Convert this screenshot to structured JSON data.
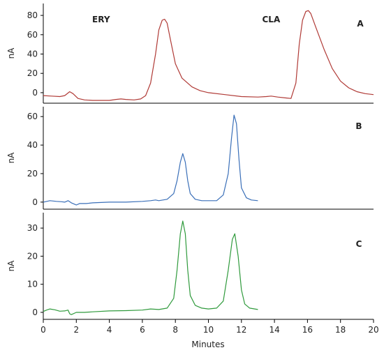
{
  "chart_data": [
    {
      "type": "line",
      "panel_label": "A",
      "ylabel": "nA",
      "ylim": [
        -8,
        88
      ],
      "yticks": [
        0,
        20,
        40,
        60,
        80
      ],
      "annotations": [
        {
          "text": "ERY",
          "x": 3.5,
          "y": 73
        },
        {
          "text": "CLA",
          "x": 13.8,
          "y": 73
        }
      ],
      "series": [
        {
          "color": "#b03a36",
          "x": [
            0.0,
            0.5,
            1.0,
            1.3,
            1.6,
            1.8,
            2.1,
            2.5,
            3.0,
            4.0,
            4.4,
            4.7,
            5.0,
            5.5,
            5.9,
            6.2,
            6.5,
            6.8,
            7.0,
            7.2,
            7.35,
            7.5,
            7.7,
            8.0,
            8.4,
            9.0,
            9.5,
            10.0,
            11.0,
            12.0,
            13.0,
            13.5,
            13.8,
            14.2,
            14.7,
            15.0,
            15.3,
            15.5,
            15.7,
            15.9,
            16.05,
            16.2,
            16.5,
            17.0,
            17.5,
            18.0,
            18.5,
            19.0,
            19.5,
            20.0
          ],
          "y": [
            -3,
            -3.5,
            -4,
            -3,
            1,
            -1,
            -6,
            -7.5,
            -8,
            -8,
            -7,
            -6.5,
            -7,
            -7.5,
            -6.5,
            -3,
            10,
            40,
            65,
            75,
            76,
            72,
            55,
            30,
            15,
            6,
            2,
            0,
            -2,
            -4,
            -4.5,
            -4,
            -3.5,
            -4.5,
            -5.5,
            -6,
            10,
            50,
            75,
            84,
            85,
            82,
            68,
            45,
            25,
            12,
            5,
            1,
            -1,
            -2
          ]
        }
      ]
    },
    {
      "type": "line",
      "panel_label": "B",
      "ylabel": "nA",
      "ylim": [
        -3,
        64
      ],
      "yticks": [
        0,
        20,
        40,
        60
      ],
      "series": [
        {
          "color": "#3a6fb8",
          "x": [
            0.0,
            0.4,
            0.8,
            1.1,
            1.3,
            1.5,
            1.7,
            1.9,
            2.0,
            2.2,
            2.6,
            3.0,
            4.0,
            5.0,
            6.0,
            6.5,
            6.8,
            7.0,
            7.5,
            7.9,
            8.1,
            8.3,
            8.45,
            8.6,
            8.75,
            8.9,
            9.2,
            9.6,
            10.0,
            10.5,
            10.9,
            11.2,
            11.4,
            11.55,
            11.7,
            11.85,
            12.0,
            12.3,
            12.6,
            13.0
          ],
          "y": [
            0,
            1,
            0.5,
            0.3,
            0,
            1,
            -0.5,
            -1.5,
            -2,
            -1,
            -1,
            -0.5,
            0,
            0,
            0.5,
            1,
            1.5,
            1,
            2,
            6,
            15,
            28,
            34,
            28,
            15,
            6,
            2,
            1,
            1,
            1,
            5,
            20,
            45,
            61,
            55,
            30,
            10,
            3,
            1.5,
            1
          ]
        }
      ]
    },
    {
      "type": "line",
      "panel_label": "C",
      "ylabel": "nA",
      "ylim": [
        -1.5,
        34
      ],
      "yticks": [
        0,
        10,
        20,
        30
      ],
      "series": [
        {
          "color": "#2f9a3c",
          "x": [
            0.0,
            0.2,
            0.4,
            0.7,
            1.0,
            1.3,
            1.5,
            1.6,
            1.7,
            2.0,
            2.5,
            3.0,
            4.0,
            5.0,
            6.0,
            6.5,
            7.0,
            7.5,
            7.9,
            8.1,
            8.3,
            8.45,
            8.6,
            8.75,
            8.9,
            9.2,
            9.6,
            10.0,
            10.5,
            10.9,
            11.2,
            11.45,
            11.6,
            11.8,
            12.0,
            12.2,
            12.5,
            13.0
          ],
          "y": [
            0.3,
            0.8,
            1.2,
            0.9,
            0.4,
            0.5,
            0.8,
            -0.5,
            -0.8,
            0,
            0,
            0.2,
            0.5,
            0.6,
            0.8,
            1.2,
            1.0,
            1.5,
            5,
            15,
            28,
            32.5,
            28,
            15,
            6,
            2.5,
            1.5,
            1.2,
            1.5,
            4,
            15,
            26,
            28,
            20,
            8,
            3,
            1.5,
            1
          ]
        }
      ]
    }
  ],
  "x_axis": {
    "label": "Minutes",
    "xlim": [
      0,
      20
    ],
    "ticks": [
      0,
      2,
      4,
      6,
      8,
      10,
      12,
      14,
      16,
      18,
      20
    ]
  }
}
